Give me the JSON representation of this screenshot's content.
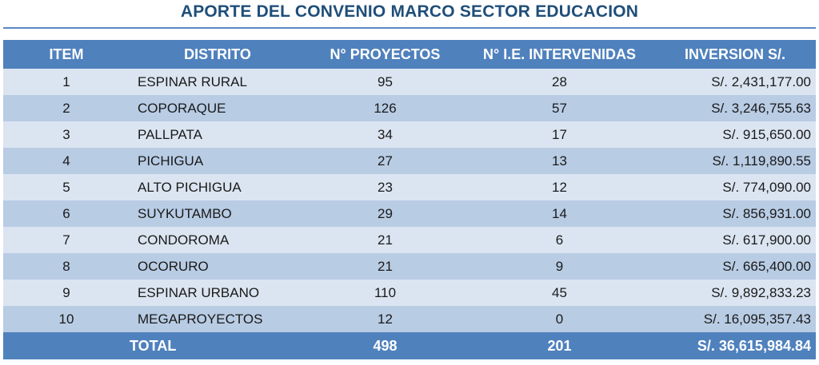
{
  "title": "APORTE DEL CONVENIO MARCO SECTOR EDUCACION",
  "headers": [
    "ITEM",
    "DISTRITO",
    "N° PROYECTOS",
    "N° I.E. INTERVENIDAS",
    "INVERSION S/."
  ],
  "rows": [
    {
      "item": "1",
      "distrito": "ESPINAR RURAL",
      "proyectos": "95",
      "ie": "28",
      "inversion": "S/. 2,431,177.00"
    },
    {
      "item": "2",
      "distrito": "COPORAQUE",
      "proyectos": "126",
      "ie": "57",
      "inversion": "S/. 3,246,755.63"
    },
    {
      "item": "3",
      "distrito": "PALLPATA",
      "proyectos": "34",
      "ie": "17",
      "inversion": "S/. 915,650.00"
    },
    {
      "item": "4",
      "distrito": "PICHIGUA",
      "proyectos": "27",
      "ie": "13",
      "inversion": "S/. 1,119,890.55"
    },
    {
      "item": "5",
      "distrito": "ALTO PICHIGUA",
      "proyectos": "23",
      "ie": "12",
      "inversion": "S/. 774,090.00"
    },
    {
      "item": "6",
      "distrito": "SUYKUTAMBO",
      "proyectos": "29",
      "ie": "14",
      "inversion": "S/. 856,931.00"
    },
    {
      "item": "7",
      "distrito": "CONDOROMA",
      "proyectos": "21",
      "ie": "6",
      "inversion": "S/. 617,900.00"
    },
    {
      "item": "8",
      "distrito": "OCORURO",
      "proyectos": "21",
      "ie": "9",
      "inversion": "S/. 665,400.00"
    },
    {
      "item": "9",
      "distrito": "ESPINAR URBANO",
      "proyectos": "110",
      "ie": "45",
      "inversion": "S/. 9,892,833.23"
    },
    {
      "item": "10",
      "distrito": "MEGAPROYECTOS",
      "proyectos": "12",
      "ie": "0",
      "inversion": "S/. 16,095,357.43"
    }
  ],
  "total": {
    "label": "TOTAL",
    "proyectos": "498",
    "ie": "201",
    "inversion": "S/. 36,615,984.84"
  },
  "colors": {
    "header_bg": "#4f81bd",
    "row_light": "#dbe5f1",
    "row_dark": "#b8cce4",
    "title": "#1f4e79"
  }
}
